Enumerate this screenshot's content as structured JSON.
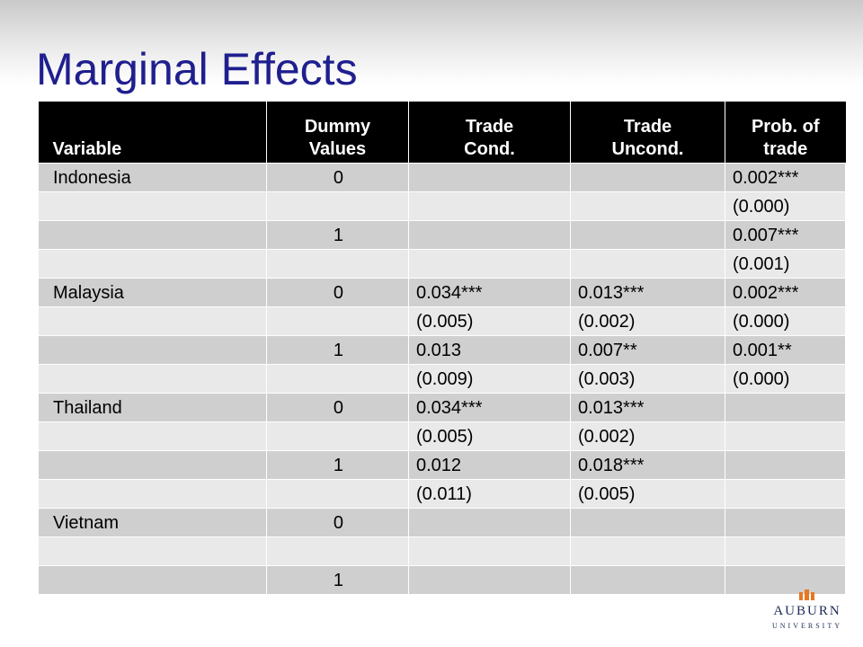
{
  "title": "Marginal Effects",
  "table": {
    "headers": {
      "variable": "Variable",
      "dummy": [
        "Dummy",
        "Values"
      ],
      "trade_cond": [
        "Trade",
        "Cond."
      ],
      "trade_uncond": [
        "Trade",
        "Uncond."
      ],
      "prob": [
        "Prob. of",
        "trade"
      ]
    },
    "rows": [
      [
        "Indonesia",
        "0",
        "",
        "",
        "0.002***"
      ],
      [
        "",
        "",
        "",
        "",
        "(0.000)"
      ],
      [
        "",
        "1",
        "",
        "",
        "0.007***"
      ],
      [
        "",
        "",
        "",
        "",
        "(0.001)"
      ],
      [
        "Malaysia",
        "0",
        "0.034***",
        "0.013***",
        "0.002***"
      ],
      [
        "",
        "",
        "(0.005)",
        "(0.002)",
        "(0.000)"
      ],
      [
        "",
        "1",
        "0.013",
        "0.007**",
        "0.001**"
      ],
      [
        "",
        "",
        "(0.009)",
        "(0.003)",
        "(0.000)"
      ],
      [
        "Thailand",
        "0",
        "0.034***",
        "0.013***",
        ""
      ],
      [
        "",
        "",
        "(0.005)",
        "(0.002)",
        ""
      ],
      [
        "",
        "1",
        "0.012",
        "0.018***",
        ""
      ],
      [
        "",
        "",
        "(0.011)",
        "(0.005)",
        ""
      ],
      [
        "Vietnam",
        "0",
        "",
        "",
        ""
      ],
      [
        "",
        "",
        "",
        "",
        ""
      ],
      [
        "",
        "1",
        "",
        "",
        ""
      ]
    ]
  },
  "logo": {
    "name": "AUBURN",
    "sub": "UNIVERSITY",
    "accent_color": "#e87722",
    "brand_color": "#1a2a55"
  }
}
